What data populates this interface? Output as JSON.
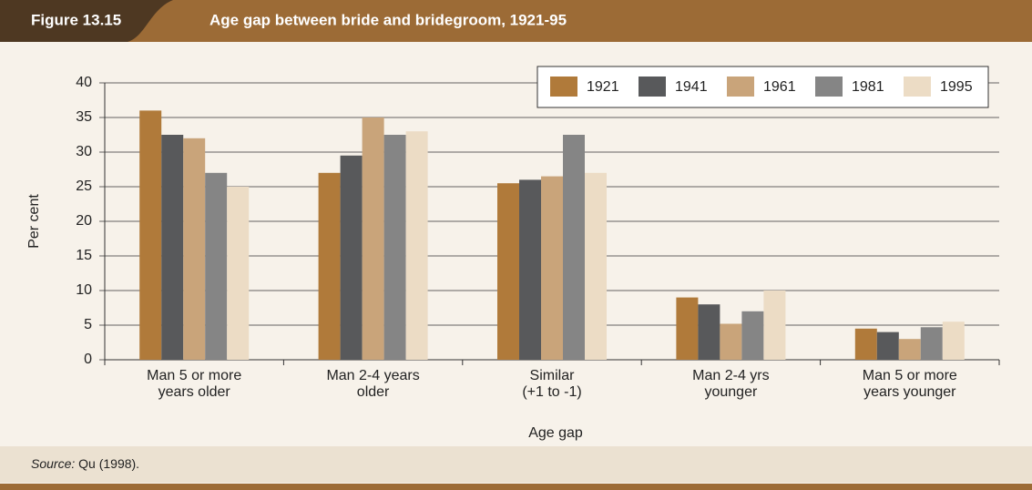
{
  "figure_label": "Figure 13.15",
  "source_label": "Source:",
  "source_text": "Qu (1998).",
  "chart_data": {
    "type": "bar",
    "title": "Age gap between bride and bridegroom, 1921-95",
    "x_label": "Age gap",
    "y_label": "Per cent",
    "categories": [
      [
        "Man 5 or more",
        "years older"
      ],
      [
        "Man 2-4 years",
        "older"
      ],
      [
        "Similar",
        "(+1 to -1)"
      ],
      [
        "Man 2-4 yrs",
        "younger"
      ],
      [
        "Man 5 or more",
        "years younger"
      ]
    ],
    "series": [
      {
        "name": "1921",
        "color": "#b07a3a",
        "values": [
          36,
          27,
          25.5,
          9,
          4.5
        ]
      },
      {
        "name": "1941",
        "color": "#58595b",
        "values": [
          32.5,
          29.5,
          26,
          8,
          4
        ]
      },
      {
        "name": "1961",
        "color": "#c9a47a",
        "values": [
          32,
          35,
          26.5,
          5.2,
          3
        ]
      },
      {
        "name": "1981",
        "color": "#858585",
        "values": [
          27,
          32.5,
          32.5,
          7,
          4.7
        ]
      },
      {
        "name": "1995",
        "color": "#ecdcc5",
        "values": [
          25,
          33,
          27,
          10,
          5.5
        ]
      }
    ],
    "ylim": [
      0,
      40
    ],
    "yticks": [
      0,
      5,
      10,
      15,
      20,
      25,
      30,
      35,
      40
    ],
    "grid": true,
    "legend": "top-right"
  }
}
